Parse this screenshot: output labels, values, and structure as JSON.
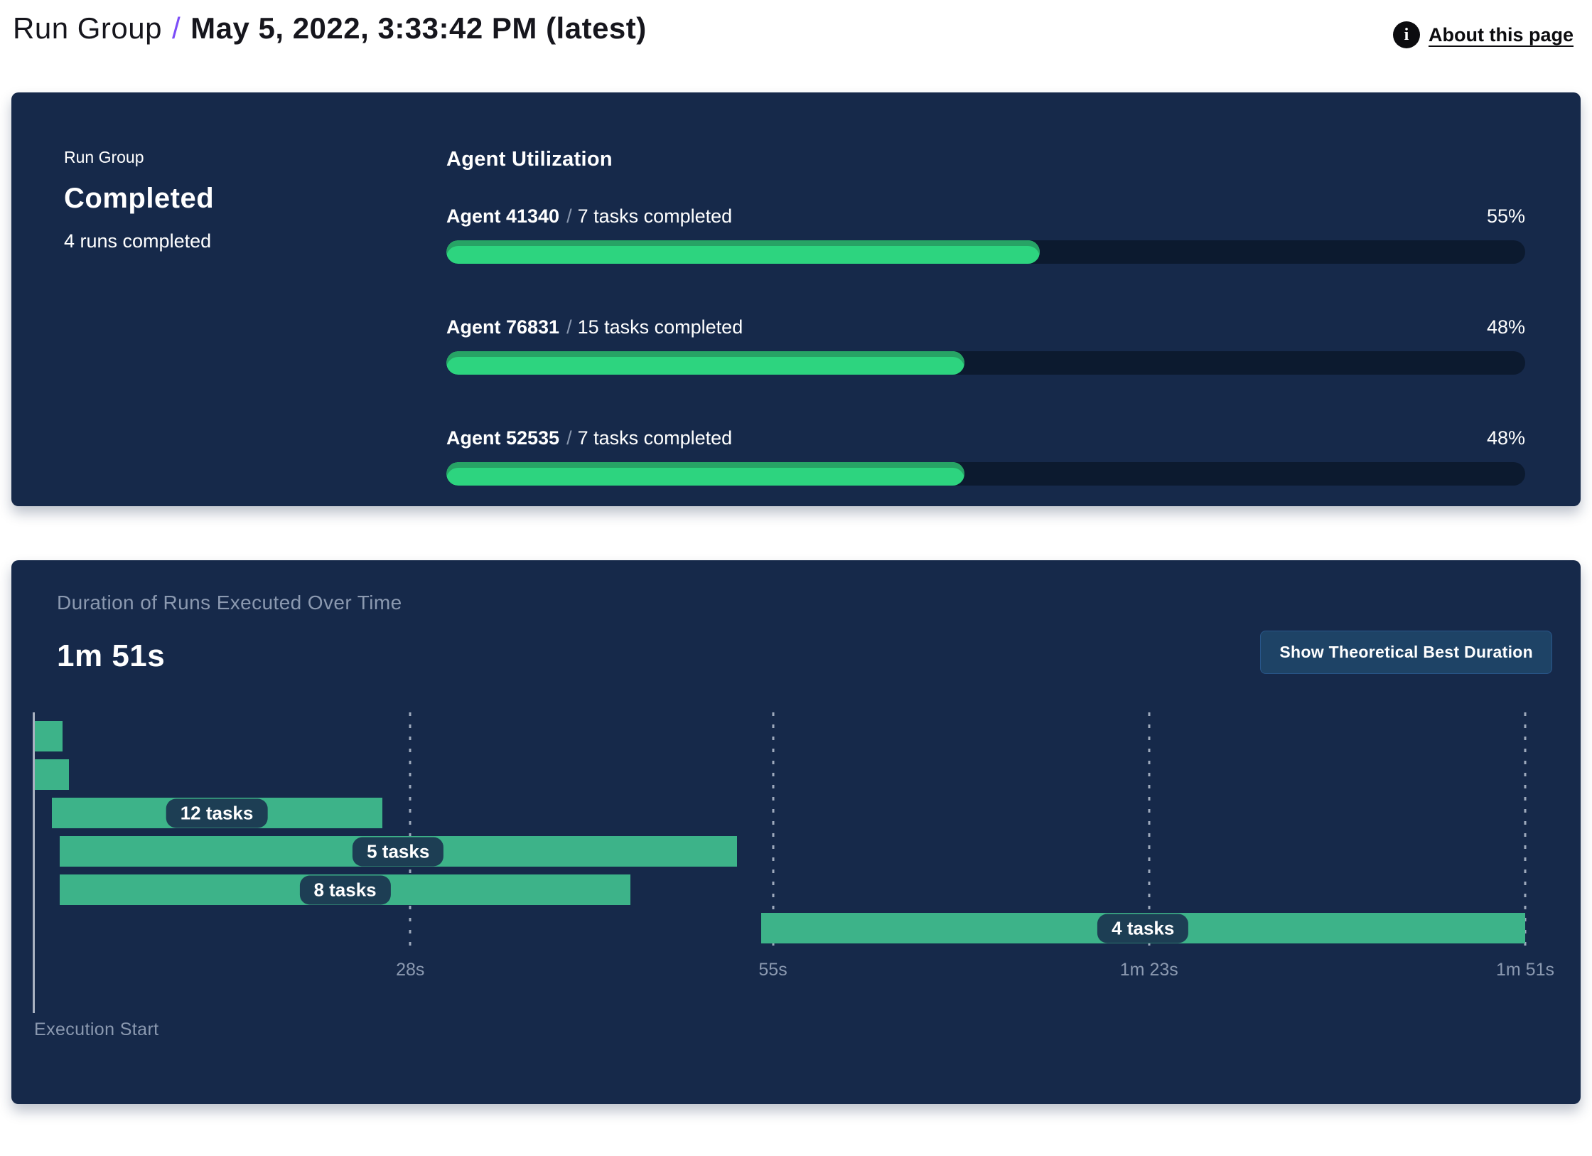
{
  "header": {
    "breadcrumb_root": "Run Group",
    "breadcrumb_separator": "/",
    "title": "May 5, 2022, 3:33:42 PM (latest)",
    "about_link": "About this page",
    "info_icon_glyph": "i"
  },
  "summary_card": {
    "label": "Run Group",
    "status": "Completed",
    "subtitle": "4 runs completed",
    "utilization": {
      "heading": "Agent Utilization",
      "agents": [
        {
          "name": "Agent 41340",
          "separator": "/",
          "tasks": "7 tasks completed",
          "percent_label": "55%",
          "percent": 55
        },
        {
          "name": "Agent 76831",
          "separator": "/",
          "tasks": "15 tasks completed",
          "percent_label": "48%",
          "percent": 48
        },
        {
          "name": "Agent 52535",
          "separator": "/",
          "tasks": "7 tasks completed",
          "percent_label": "48%",
          "percent": 48
        }
      ]
    }
  },
  "duration_card": {
    "title": "Duration of Runs Executed Over Time",
    "total_duration": "1m 51s",
    "button_label": "Show Theoretical Best Duration",
    "execution_start_label": "Execution Start"
  },
  "chart_data": {
    "type": "gantt",
    "title": "Duration of Runs Executed Over Time",
    "total_duration_s": 111,
    "x_ticks": [
      {
        "label": "28s",
        "s": 28
      },
      {
        "label": "55s",
        "s": 55
      },
      {
        "label": "1m 23s",
        "s": 83
      },
      {
        "label": "1m 51s",
        "s": 111
      }
    ],
    "bars": [
      {
        "label": "",
        "tasks": null,
        "start_s": 0,
        "end_s": 2.1
      },
      {
        "label": "",
        "tasks": null,
        "start_s": 0,
        "end_s": 2.6
      },
      {
        "label": "12 tasks",
        "tasks": 12,
        "start_s": 1.3,
        "end_s": 25.9
      },
      {
        "label": "5 tasks",
        "tasks": 5,
        "start_s": 1.9,
        "end_s": 52.3
      },
      {
        "label": "8 tasks",
        "tasks": 8,
        "start_s": 1.9,
        "end_s": 44.4
      },
      {
        "label": "4 tasks",
        "tasks": 4,
        "start_s": 54.1,
        "end_s": 111
      }
    ],
    "grid": "vertical-dashed",
    "legend": "none"
  },
  "colors": {
    "card_bg": "#16294a",
    "progress_green": "#2dd47f",
    "progress_green_dark": "#27a365",
    "progress_track": "#0c1a2f",
    "gantt_green": "#3db389",
    "pill_bg": "#1d3e54",
    "muted_text": "#8b99b0",
    "accent_purple": "#7c4df8",
    "button_bg": "#1e4366"
  }
}
